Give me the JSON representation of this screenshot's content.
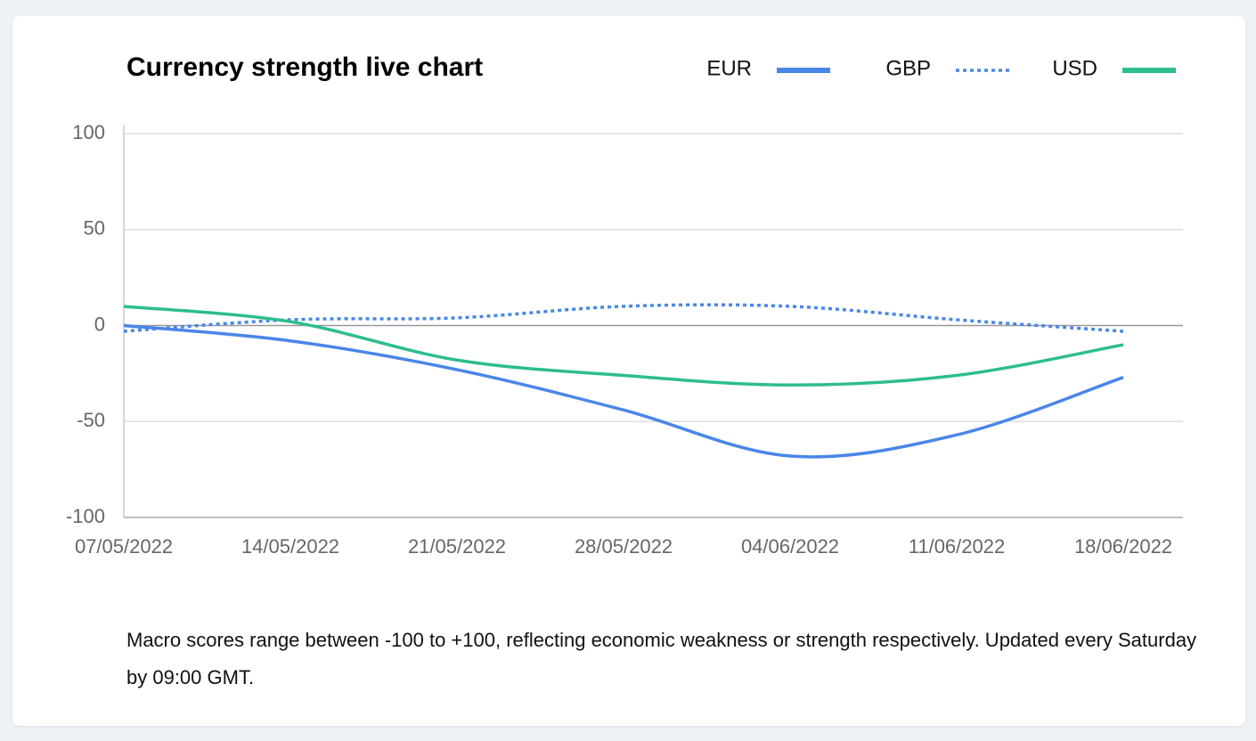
{
  "chart_data": {
    "type": "line",
    "title": "Currency strength live chart",
    "categories": [
      "07/05/2022",
      "14/05/2022",
      "21/05/2022",
      "28/05/2022",
      "04/06/2022",
      "11/06/2022",
      "18/06/2022"
    ],
    "series": [
      {
        "name": "EUR",
        "color": "#4a86e8",
        "line_style": "solid",
        "values": [
          0,
          -8,
          -23,
          -44,
          -68,
          -57,
          -27
        ]
      },
      {
        "name": "GBP",
        "color": "#4a86e8",
        "line_style": "dotted",
        "values": [
          -3,
          3,
          4,
          10,
          10,
          3,
          -3
        ]
      },
      {
        "name": "USD",
        "color": "#2dbd8f",
        "line_style": "solid",
        "values": [
          10,
          2,
          -18,
          -26,
          -31,
          -26,
          -10
        ]
      }
    ],
    "ylim": [
      -100,
      100
    ],
    "yticks": [
      -100,
      -50,
      0,
      50,
      100
    ],
    "grid": true,
    "legend": "top-right",
    "footnote": "Macro scores range between -100 to +100, reflecting economic weakness or strength respectively. Updated every Saturday by 09:00 GMT."
  }
}
